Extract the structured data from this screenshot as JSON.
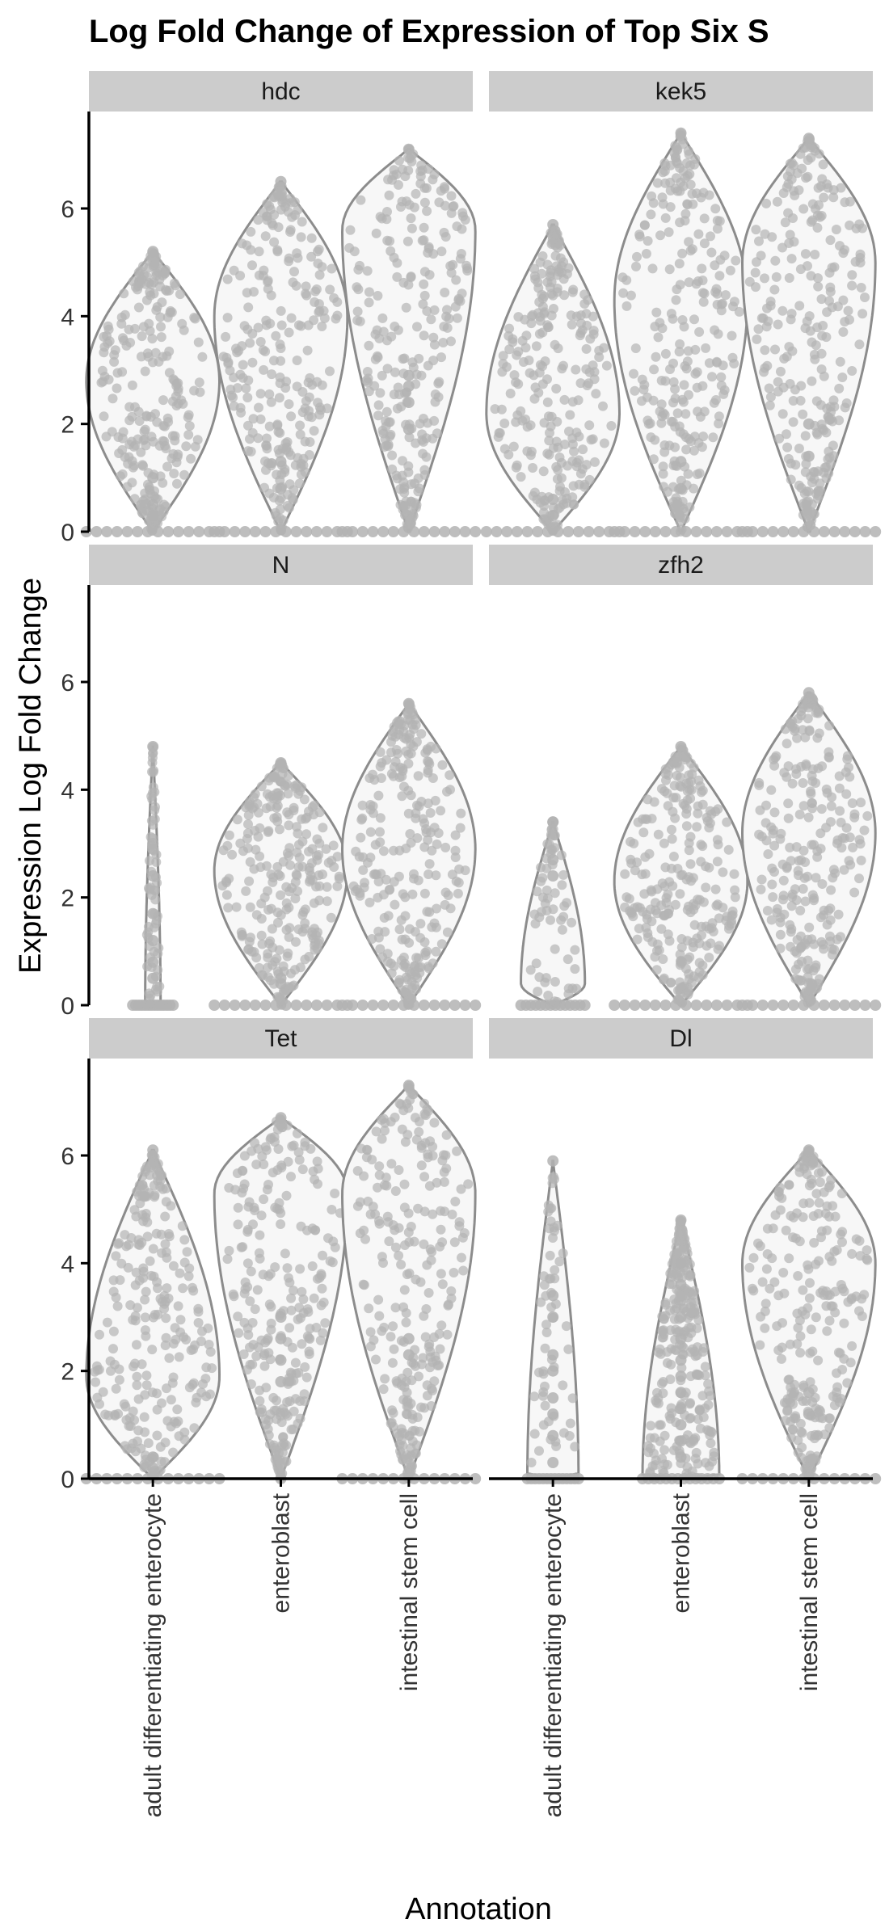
{
  "chart_data": {
    "type": "violin",
    "title": "Log Fold Change of Expression of Top Six S",
    "xlabel": "Annotation",
    "ylabel": "Expression Log Fold Change",
    "ylim": [
      0,
      7.8
    ],
    "yticks": [
      0,
      2,
      4,
      6
    ],
    "categories": [
      "adult differentiating enterocyte",
      "enteroblast",
      "intestinal stem cell"
    ],
    "grid": false,
    "colors": {
      "point": "#b3b3b3",
      "outline": "#8c8c8c",
      "fill": "#f7f7f7",
      "strip": "#cccccc",
      "axis": "#000000"
    },
    "panels": [
      {
        "gene": "hdc",
        "violins": [
          {
            "category": "adult differentiating enterocyte",
            "min": 0,
            "max": 5.2,
            "mode": 2.8,
            "halfwidth": 0.52,
            "zeros": true,
            "outliers": [
              0.3,
              0.5,
              1.0
            ]
          },
          {
            "category": "enteroblast",
            "min": 0,
            "max": 6.5,
            "mode": 4.0,
            "halfwidth": 0.52,
            "zeros": true,
            "outliers": [
              0.8,
              1.3
            ]
          },
          {
            "category": "intestinal stem cell",
            "min": 0,
            "max": 7.1,
            "mode": 5.6,
            "halfwidth": 0.52,
            "zeros": true,
            "outliers": [
              1.9,
              2.4,
              2.7,
              2.9
            ]
          }
        ]
      },
      {
        "gene": "kek5",
        "violins": [
          {
            "category": "adult differentiating enterocyte",
            "min": 0,
            "max": 5.7,
            "mode": 2.2,
            "halfwidth": 0.52,
            "zeros": true,
            "outliers": [
              0.3,
              0.6
            ]
          },
          {
            "category": "enteroblast",
            "min": 0,
            "max": 7.4,
            "mode": 4.3,
            "halfwidth": 0.52,
            "zeros": true,
            "outliers": [
              0.8,
              1.3
            ]
          },
          {
            "category": "intestinal stem cell",
            "min": 0,
            "max": 7.3,
            "mode": 5.0,
            "halfwidth": 0.52,
            "zeros": true,
            "outliers": [
              1.4,
              2.0
            ]
          }
        ]
      },
      {
        "gene": "N",
        "violins": [
          {
            "category": "adult differentiating enterocyte",
            "min": 0,
            "max": 4.8,
            "mode": 0,
            "halfwidth": 0.06,
            "zeros": true,
            "outliers": [
              0.5,
              0.8,
              1.2,
              1.7,
              2.4,
              2.9,
              3.0
            ]
          },
          {
            "category": "enteroblast",
            "min": 0,
            "max": 4.5,
            "mode": 2.5,
            "halfwidth": 0.52,
            "zeros": true,
            "outliers": [
              0.4,
              0.5
            ]
          },
          {
            "category": "intestinal stem cell",
            "min": 0,
            "max": 5.6,
            "mode": 2.9,
            "halfwidth": 0.52,
            "zeros": true,
            "outliers": []
          }
        ]
      },
      {
        "gene": "zfh2",
        "violins": [
          {
            "category": "adult differentiating enterocyte",
            "min": 0,
            "max": 3.4,
            "mode": 0.4,
            "halfwidth": 0.25,
            "zeros": true,
            "outliers": [
              2.4,
              2.7,
              3.4
            ]
          },
          {
            "category": "enteroblast",
            "min": 0,
            "max": 4.8,
            "mode": 2.3,
            "halfwidth": 0.52,
            "zeros": true,
            "outliers": []
          },
          {
            "category": "intestinal stem cell",
            "min": 0,
            "max": 5.8,
            "mode": 3.2,
            "halfwidth": 0.52,
            "zeros": true,
            "outliers": []
          }
        ]
      },
      {
        "gene": "Tet",
        "violins": [
          {
            "category": "adult differentiating enterocyte",
            "min": 0,
            "max": 6.1,
            "mode": 1.9,
            "halfwidth": 0.52,
            "zeros": true,
            "outliers": [
              0.2,
              0.4
            ]
          },
          {
            "category": "enteroblast",
            "min": 0,
            "max": 6.7,
            "mode": 5.3,
            "halfwidth": 0.52,
            "zeros": false,
            "outliers": [
              0,
              1.8,
              2.2,
              2.6,
              3.0
            ]
          },
          {
            "category": "intestinal stem cell",
            "min": 0,
            "max": 7.3,
            "mode": 5.3,
            "halfwidth": 0.52,
            "zeros": true,
            "outliers": [
              2.3,
              2.6
            ]
          }
        ]
      },
      {
        "gene": "Dl",
        "violins": [
          {
            "category": "adult differentiating enterocyte",
            "min": 0,
            "max": 5.9,
            "mode": 0,
            "halfwidth": 0.2,
            "zeros": true,
            "outliers": [
              0.3,
              0.8,
              1.2,
              1.5,
              2.0,
              2.3,
              3.0,
              3.4
            ]
          },
          {
            "category": "enteroblast",
            "min": 0,
            "max": 4.8,
            "mode": 0,
            "halfwidth": 0.3,
            "zeros": true,
            "outliers": [
              0.4,
              0.7,
              1.0,
              1.3,
              1.6,
              1.9,
              2.2,
              2.6,
              3.0,
              3.6,
              4.0
            ]
          },
          {
            "category": "intestinal stem cell",
            "min": 0,
            "max": 6.1,
            "mode": 4.0,
            "halfwidth": 0.52,
            "zeros": true,
            "outliers": [
              1.2,
              1.6
            ]
          }
        ]
      }
    ]
  }
}
